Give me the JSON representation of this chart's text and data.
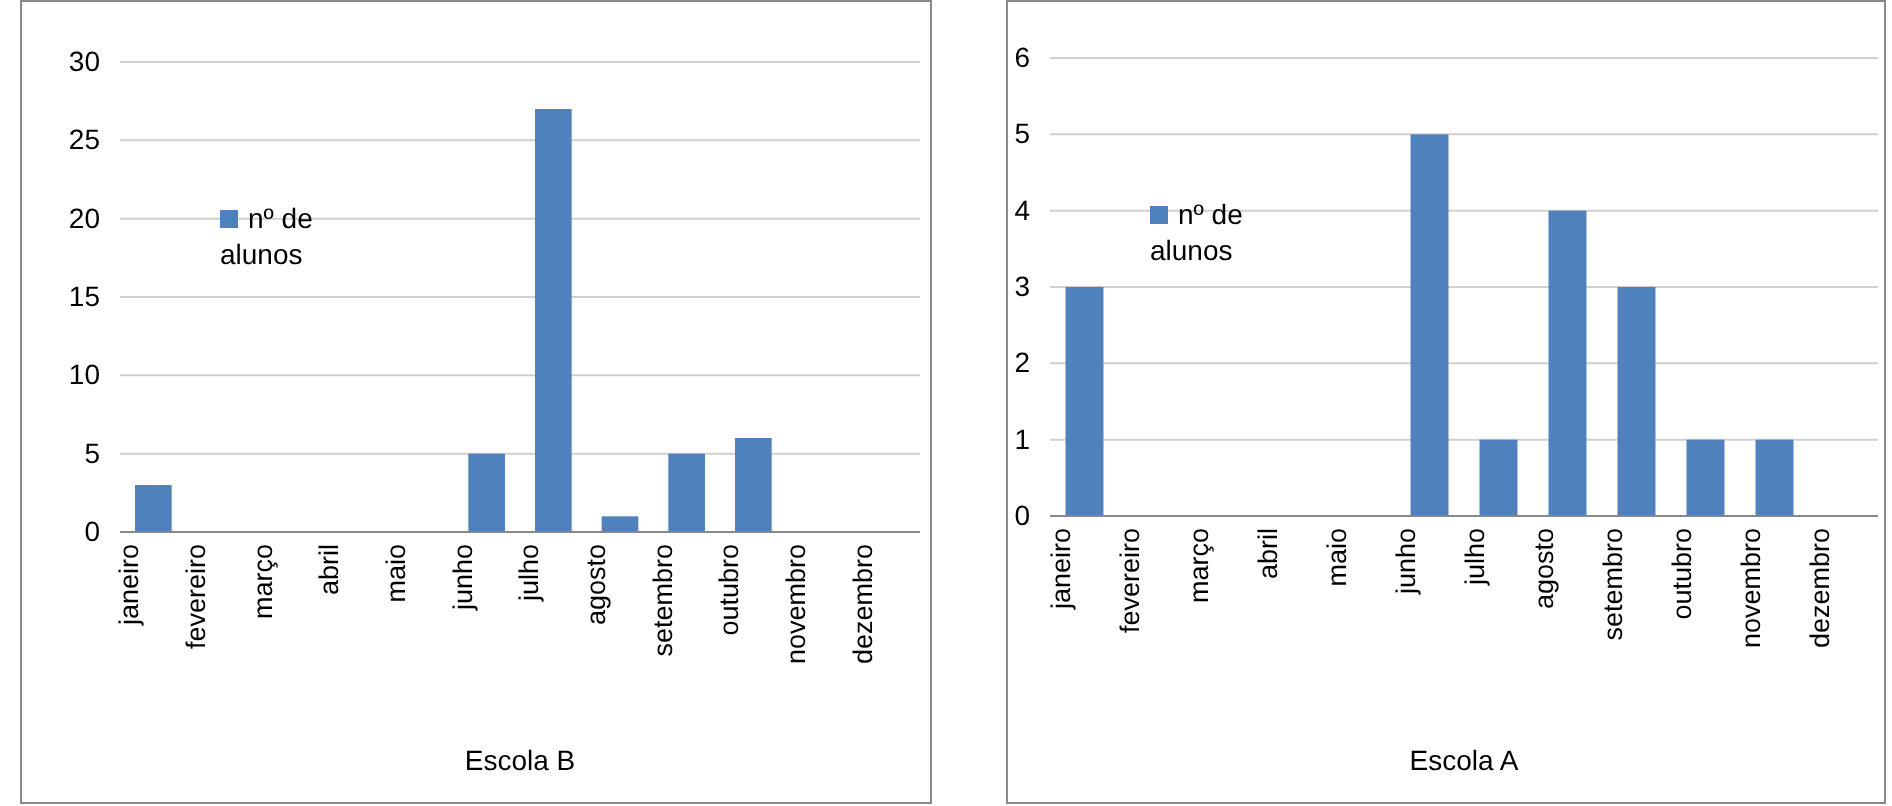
{
  "chart_data": [
    {
      "type": "bar",
      "xlabel": "Escola B",
      "categories": [
        "janeiro",
        "fevereiro",
        "março",
        "abril",
        "maio",
        "junho",
        "julho",
        "agosto",
        "setembro",
        "outubro",
        "novembro",
        "dezembro"
      ],
      "series": [
        {
          "name": "nº de alunos",
          "color": "#4f81bd",
          "values": [
            3,
            0,
            0,
            0,
            0,
            5,
            27,
            1,
            5,
            6,
            0,
            0
          ]
        }
      ],
      "ylim": [
        0,
        30
      ],
      "yticks": [
        0,
        5,
        10,
        15,
        20,
        25,
        30
      ],
      "grid": "y",
      "legend": "top left"
    },
    {
      "type": "bar",
      "xlabel": "Escola A",
      "categories": [
        "janeiro",
        "fevereiro",
        "março",
        "abril",
        "maio",
        "junho",
        "julho",
        "agosto",
        "setembro",
        "outubro",
        "novembro",
        "dezembro"
      ],
      "series": [
        {
          "name": "nº de alunos",
          "color": "#4f81bd",
          "values": [
            3,
            0,
            0,
            0,
            0,
            5,
            1,
            4,
            3,
            1,
            1,
            0
          ]
        }
      ],
      "ylim": [
        0,
        6
      ],
      "yticks": [
        0,
        1,
        2,
        3,
        4,
        5,
        6
      ],
      "grid": "y",
      "legend": "top left"
    }
  ]
}
